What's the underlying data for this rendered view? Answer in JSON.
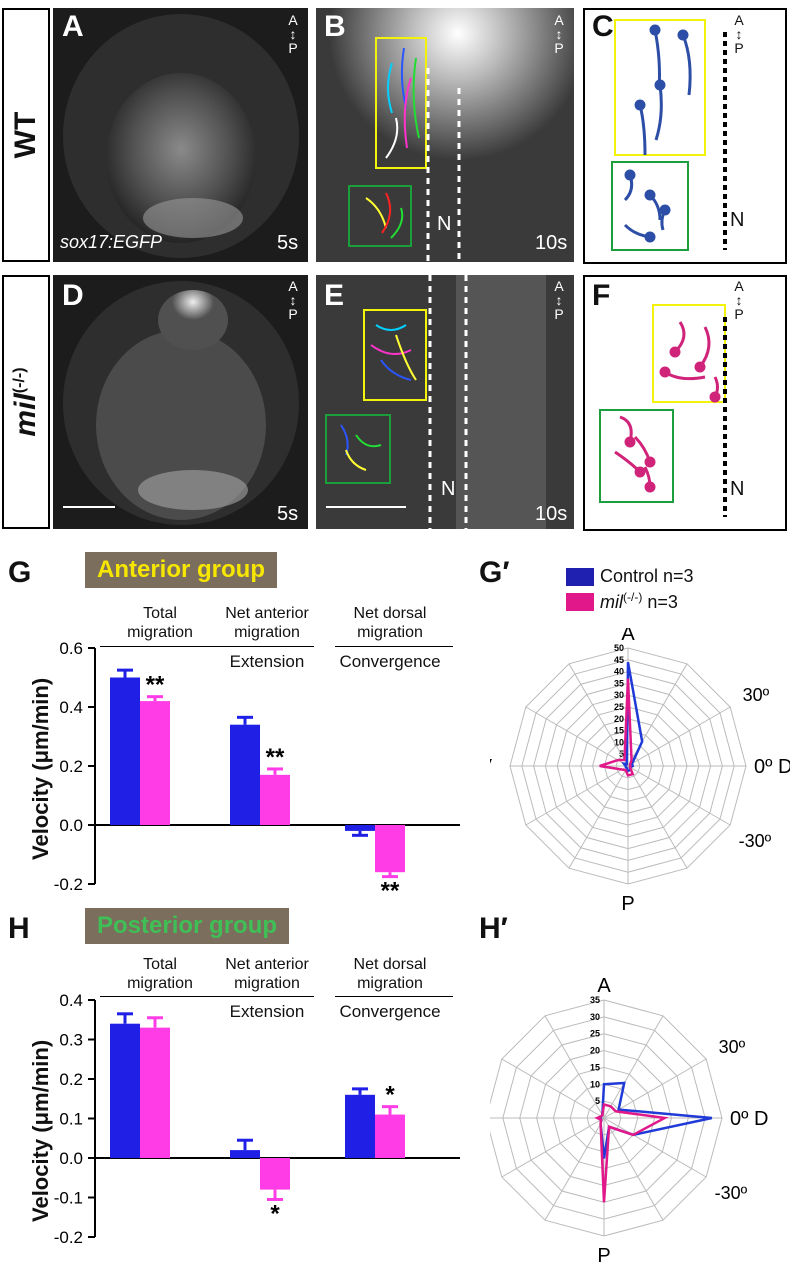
{
  "panels": {
    "A": "A",
    "B": "B",
    "C": "C",
    "D": "D",
    "E": "E",
    "F": "F",
    "G": "G",
    "G_prime": "G′",
    "H": "H",
    "H_prime": "H′"
  },
  "rows": {
    "wt": "WT",
    "mil": "mil",
    "mil_sup": "(-/-)"
  },
  "orientation": {
    "a": "A",
    "p": "P"
  },
  "transgene": "sox17:EGFP",
  "times": {
    "t5": "5s",
    "t10": "10s"
  },
  "notochord": "N",
  "colors": {
    "control": "#1f1fe6",
    "mutant": "#ff3ce6",
    "anterior_box": "#f2f20a",
    "posterior_box": "#1c9e3c",
    "track_blue": "#2c4ea6",
    "track_pink": "#d0247a"
  },
  "anterior_group": {
    "title": "Anterior group",
    "title_color": "#f7e600",
    "headers": [
      {
        "line1": "Total",
        "line2": "migration",
        "sub": ""
      },
      {
        "line1": "Net anterior",
        "line2": "migration",
        "sub": "Extension"
      },
      {
        "line1": "Net dorsal",
        "line2": "migration",
        "sub": "Convergence"
      }
    ],
    "ylabel": "Velocity (μm/min)",
    "yticks": [
      "0.6",
      "0.4",
      "0.2",
      "0.0",
      "-0.2"
    ],
    "significance": [
      "**",
      "**",
      "**"
    ]
  },
  "posterior_group": {
    "title": "Posterior group",
    "title_color": "#3fbf56",
    "headers": [
      {
        "line1": "Total",
        "line2": "migration",
        "sub": ""
      },
      {
        "line1": "Net anterior",
        "line2": "migration",
        "sub": "Extension"
      },
      {
        "line1": "Net dorsal",
        "line2": "migration",
        "sub": "Convergence"
      }
    ],
    "ylabel": "Velocity (μm/min)",
    "yticks": [
      "0.4",
      "0.3",
      "0.2",
      "0.1",
      "0.0",
      "-0.1",
      "-0.2"
    ],
    "significance": [
      "*",
      "*"
    ]
  },
  "legend": {
    "control": "Control n=3",
    "mutant_name": "mil",
    "mutant_sup": "(-/-)",
    "mutant_n": " n=3"
  },
  "polar_labels": {
    "top": "A",
    "bottom": "P",
    "left": "V",
    "right": "D",
    "r30": "30º",
    "r0": "0º",
    "rm30": "-30º"
  },
  "chart_data": [
    {
      "type": "bar",
      "title": "Anterior group",
      "categories": [
        "Total migration",
        "Net anterior migration",
        "Net dorsal migration"
      ],
      "ylabel": "Velocity (μm/min)",
      "ylim": [
        -0.2,
        0.6
      ],
      "series": [
        {
          "name": "Control n=3",
          "values": [
            0.5,
            0.34,
            -0.02
          ],
          "errors": [
            0.025,
            0.025,
            0.015
          ]
        },
        {
          "name": "mil(-/-) n=3",
          "values": [
            0.42,
            0.17,
            -0.16
          ],
          "errors": [
            0.015,
            0.02,
            0.015
          ]
        }
      ]
    },
    {
      "type": "bar",
      "title": "Posterior group",
      "categories": [
        "Total migration",
        "Net anterior migration",
        "Net dorsal migration"
      ],
      "ylabel": "Velocity (μm/min)",
      "ylim": [
        -0.2,
        0.4
      ],
      "series": [
        {
          "name": "Control n=3",
          "values": [
            0.34,
            0.02,
            0.16
          ],
          "errors": [
            0.025,
            0.025,
            0.015
          ]
        },
        {
          "name": "mil(-/-) n=3",
          "values": [
            0.33,
            -0.08,
            0.11
          ],
          "errors": [
            0.025,
            0.025,
            0.02
          ]
        }
      ]
    },
    {
      "type": "radar",
      "angles_deg": [
        90,
        60,
        30,
        0,
        -30,
        -60,
        -90,
        -120,
        -150,
        180,
        150,
        120
      ],
      "rmax": 50,
      "rticks": [
        5,
        10,
        15,
        20,
        25,
        30,
        35,
        40,
        45,
        50
      ],
      "series": [
        {
          "name": "Control n=3",
          "values": [
            44,
            12,
            2,
            2,
            1,
            2,
            2,
            1,
            1,
            1,
            2,
            1
          ]
        },
        {
          "name": "mil(-/-) n=3",
          "values": [
            37,
            3,
            1,
            1,
            1,
            4,
            4,
            2,
            3,
            12,
            5,
            3
          ]
        }
      ]
    },
    {
      "type": "radar",
      "angles_deg": [
        90,
        60,
        30,
        0,
        -30,
        -60,
        -90,
        -120,
        -150,
        180,
        150,
        120
      ],
      "rmax": 35,
      "rticks": [
        5,
        10,
        15,
        20,
        25,
        30,
        35
      ],
      "series": [
        {
          "name": "Control n=3",
          "values": [
            10,
            12,
            5,
            32,
            10,
            3,
            12,
            2,
            1,
            1,
            1,
            1
          ]
        },
        {
          "name": "mil(-/-) n=3",
          "values": [
            4,
            4,
            4,
            18,
            10,
            3,
            25,
            2,
            1,
            2,
            1,
            1
          ]
        }
      ]
    }
  ]
}
